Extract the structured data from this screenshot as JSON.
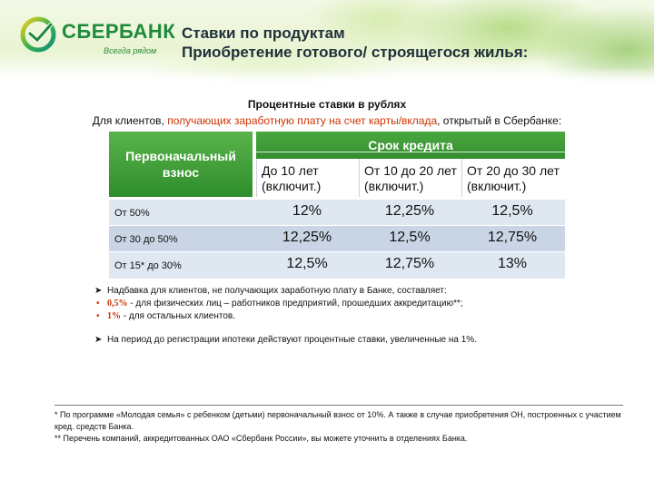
{
  "brand": {
    "name": "СБЕРБАНК",
    "slogan": "Всегда рядом",
    "colors": {
      "primary_green": "#1e8a3a",
      "header_green": "#3b9a34",
      "accent_red": "#cc3300"
    }
  },
  "header": {
    "title_line1": "Ставки по продуктам",
    "title_line2": "Приобретение готового/ строящегося  жилья:"
  },
  "intro": {
    "heading": "Процентные ставки в рублях",
    "text_before": "Для клиентов, ",
    "text_highlight": "получающих заработную плату на счет карты/вклада",
    "text_after": ", открытый в Сбербанке:"
  },
  "table": {
    "first_col_header": "Первоначальный взнос",
    "group_header": "Срок кредита",
    "columns": [
      "До 10 лет (включит.)",
      "От 10 до 20 лет (включит.)",
      "От 20 до 30 лет (включит.)"
    ],
    "rows": [
      {
        "label": "От 50%",
        "values": [
          "12%",
          "12,25%",
          "12,5%"
        ]
      },
      {
        "label": "От 30 до 50%",
        "values": [
          "12,25%",
          "12,5%",
          "12,75%"
        ]
      },
      {
        "label": "От 15* до 30%",
        "values": [
          "12,5%",
          "12,75%",
          "13%"
        ]
      }
    ]
  },
  "notes": {
    "surcharge_intro": "Надбавка для клиентов, не получающих заработную плату в Банке, составляет:",
    "surcharge_items": [
      {
        "value": "0,5%",
        "text": " - для физических лиц – работников предприятий, прошедших аккредитацию**;"
      },
      {
        "value": "1%",
        "text": " - для остальных клиентов."
      }
    ],
    "registration_note": "На период до регистрации ипотеки действуют процентные ставки, увеличенные на 1%."
  },
  "footer": {
    "line1": "* По программе «Молодая семья» с ребенком (детьми) первоначальный взнос от 10%. А также в случае приобретения ОН, построенных с участием кред. средств Банка.",
    "line2": "** Перечень компаний, аккредитованных ОАО «Сбербанк России», вы можете уточнить в отделениях Банка."
  }
}
